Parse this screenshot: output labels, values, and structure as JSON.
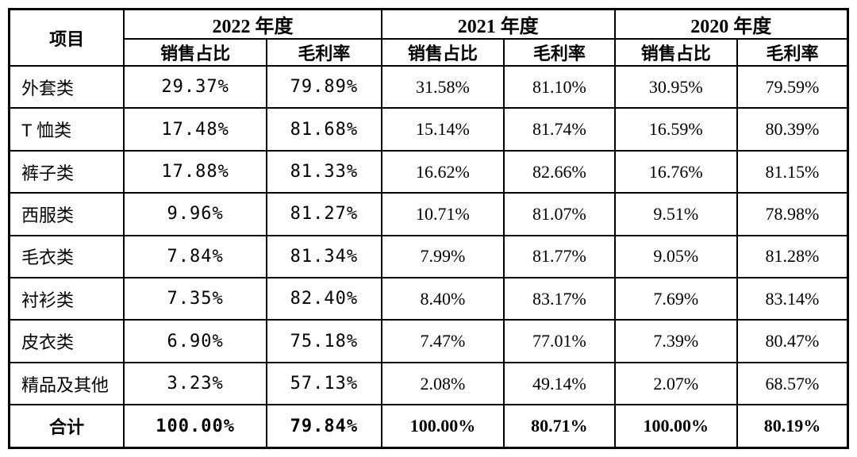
{
  "table": {
    "corner_label": "项目",
    "year_groups": [
      {
        "label": "2022 年度"
      },
      {
        "label": "2021 年度"
      },
      {
        "label": "2020 年度"
      }
    ],
    "sub_headers": [
      "销售占比",
      "毛利率"
    ],
    "rows": [
      {
        "label": "外套类",
        "values": [
          "29.37%",
          "79.89%",
          "31.58%",
          "81.10%",
          "30.95%",
          "79.59%"
        ]
      },
      {
        "label": "T 恤类",
        "values": [
          "17.48%",
          "81.68%",
          "15.14%",
          "81.74%",
          "16.59%",
          "80.39%"
        ]
      },
      {
        "label": "裤子类",
        "values": [
          "17.88%",
          "81.33%",
          "16.62%",
          "82.66%",
          "16.76%",
          "81.15%"
        ]
      },
      {
        "label": "西服类",
        "values": [
          "9.96%",
          "81.27%",
          "10.71%",
          "81.07%",
          "9.51%",
          "78.98%"
        ]
      },
      {
        "label": "毛衣类",
        "values": [
          "7.84%",
          "81.34%",
          "7.99%",
          "81.77%",
          "9.05%",
          "81.28%"
        ]
      },
      {
        "label": "衬衫类",
        "values": [
          "7.35%",
          "82.40%",
          "8.40%",
          "83.17%",
          "7.69%",
          "83.14%"
        ]
      },
      {
        "label": "皮衣类",
        "values": [
          "6.90%",
          "75.18%",
          "7.47%",
          "77.01%",
          "7.39%",
          "80.47%"
        ]
      },
      {
        "label": "精品及其他",
        "values": [
          "3.23%",
          "57.13%",
          "2.08%",
          "49.14%",
          "2.07%",
          "68.57%"
        ]
      }
    ],
    "total_row": {
      "label": "合计",
      "values": [
        "100.00%",
        "79.84%",
        "100.00%",
        "80.71%",
        "100.00%",
        "80.19%"
      ]
    },
    "colors": {
      "border": "#000000",
      "background": "#ffffff",
      "text": "#000000"
    }
  }
}
